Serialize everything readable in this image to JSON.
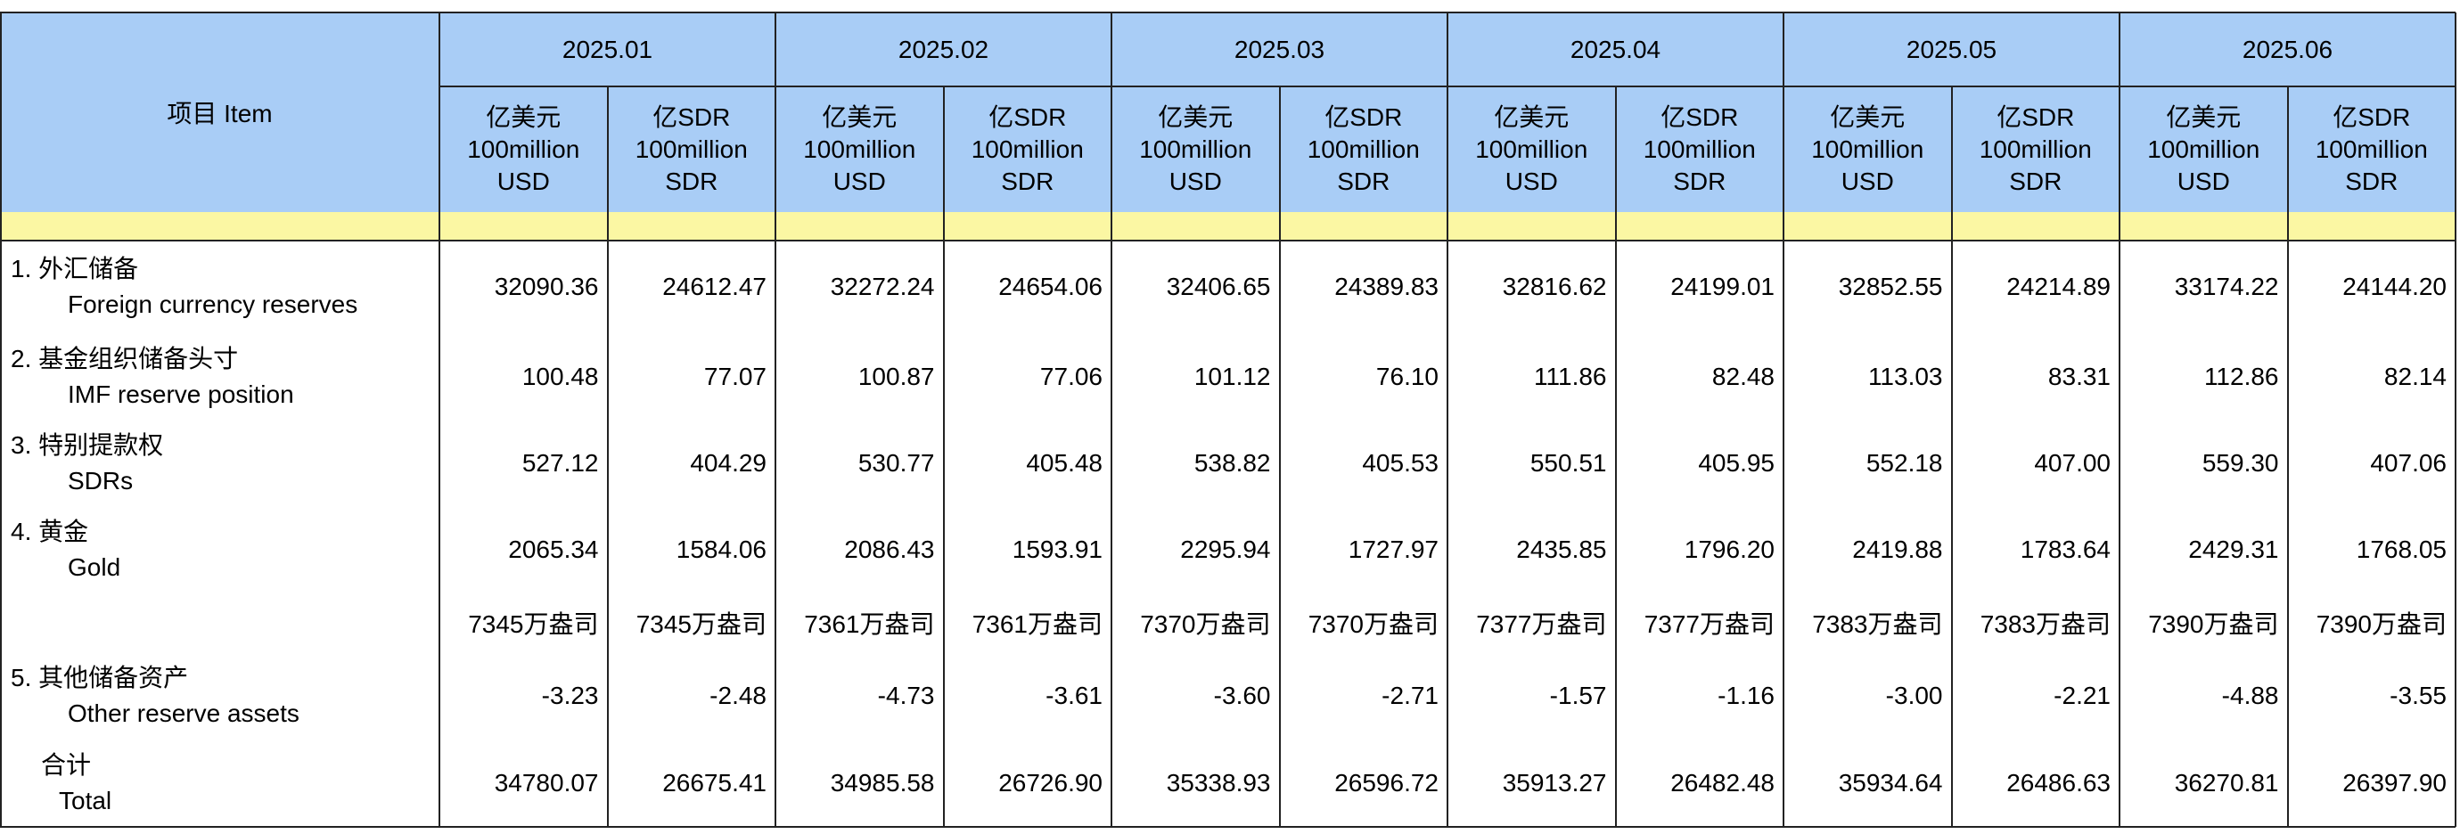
{
  "header": {
    "item": "项目 Item",
    "periods": [
      "2025.01",
      "2025.02",
      "2025.03",
      "2025.04",
      "2025.05",
      "2025.06"
    ],
    "units": [
      [
        "亿美元",
        "100million",
        "USD"
      ],
      [
        "亿SDR",
        "100million",
        "SDR"
      ]
    ]
  },
  "rows": [
    {
      "label_cn": "1.  外汇储备",
      "label_en": "Foreign currency reserves",
      "values": [
        "32090.36",
        "24612.47",
        "32272.24",
        "24654.06",
        "32406.65",
        "24389.83",
        "32816.62",
        "24199.01",
        "32852.55",
        "24214.89",
        "33174.22",
        "24144.20"
      ]
    },
    {
      "label_cn": "2.  基金组织储备头寸",
      "label_en": "IMF reserve position",
      "values": [
        "100.48",
        "77.07",
        "100.87",
        "77.06",
        "101.12",
        "76.10",
        "111.86",
        "82.48",
        "113.03",
        "83.31",
        "112.86",
        "82.14"
      ]
    },
    {
      "label_cn": "3.  特别提款权",
      "label_en": "SDRs",
      "values": [
        "527.12",
        "404.29",
        "530.77",
        "405.48",
        "538.82",
        "405.53",
        "550.51",
        "405.95",
        "552.18",
        "407.00",
        "559.30",
        "407.06"
      ]
    },
    {
      "label_cn": "4.  黄金",
      "label_en": "Gold",
      "values": [
        "2065.34",
        "1584.06",
        "2086.43",
        "1593.91",
        "2295.94",
        "1727.97",
        "2435.85",
        "1796.20",
        "2419.88",
        "1783.64",
        "2429.31",
        "1768.05"
      ]
    },
    {
      "values": [
        "7345万盎司",
        "7345万盎司",
        "7361万盎司",
        "7361万盎司",
        "7370万盎司",
        "7370万盎司",
        "7377万盎司",
        "7377万盎司",
        "7383万盎司",
        "7383万盎司",
        "7390万盎司",
        "7390万盎司"
      ]
    },
    {
      "label_cn": "5.  其他储备资产",
      "label_en": "Other reserve assets",
      "values": [
        "-3.23",
        "-2.48",
        "-4.73",
        "-3.61",
        "-3.60",
        "-2.71",
        "-1.57",
        "-1.16",
        "-3.00",
        "-2.21",
        "-4.88",
        "-3.55"
      ]
    },
    {
      "label_cn": "合计",
      "label_en": "Total",
      "values": [
        "34780.07",
        "26675.41",
        "34985.58",
        "26726.90",
        "35338.93",
        "26596.72",
        "35913.27",
        "26482.48",
        "35934.64",
        "26486.63",
        "36270.81",
        "26397.90"
      ]
    }
  ]
}
